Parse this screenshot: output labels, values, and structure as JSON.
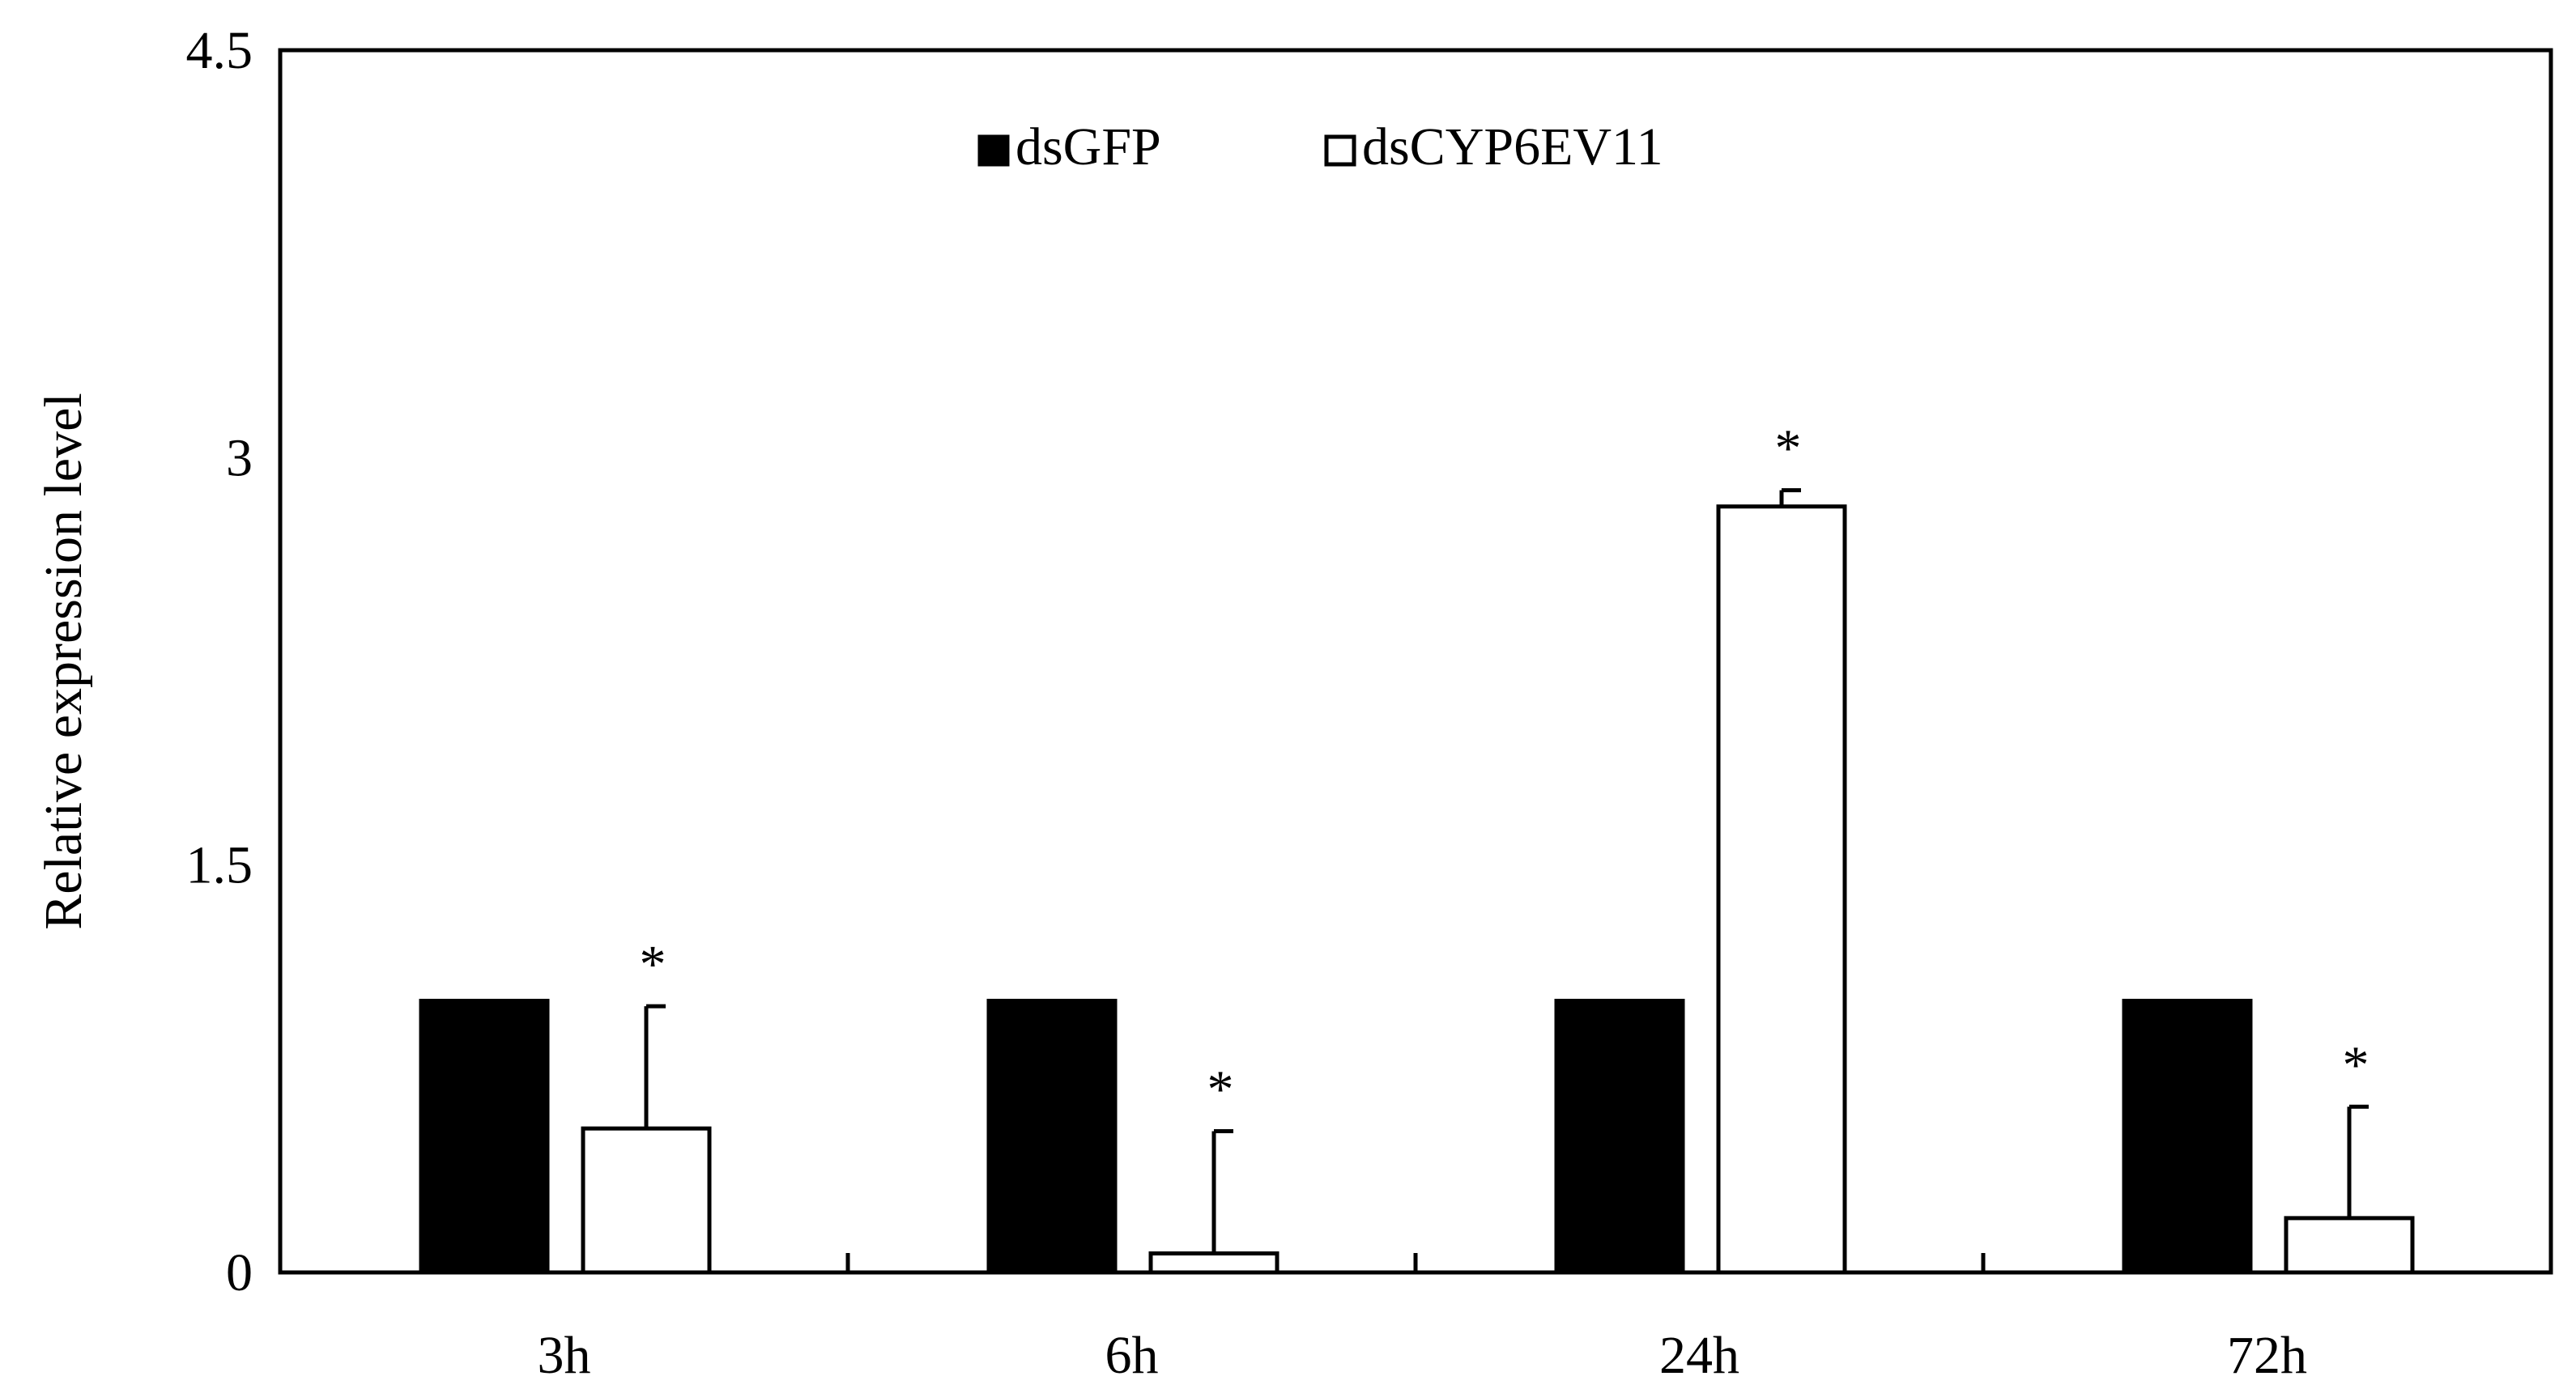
{
  "chart_data": {
    "type": "bar",
    "title": "",
    "xlabel": "",
    "ylabel": "Relative expression level",
    "ylim": [
      0,
      4.5
    ],
    "yticks": [
      "0",
      "1.5",
      "3",
      "4.5"
    ],
    "categories": [
      "3h",
      "6h",
      "24h",
      "72h"
    ],
    "series": [
      {
        "name": "dsGFP",
        "values": [
          1.0,
          1.0,
          1.0,
          1.0
        ],
        "fill": "#000000",
        "error": [
          0,
          0,
          0,
          0
        ]
      },
      {
        "name": "dsCYP6EV11",
        "values": [
          0.53,
          0.07,
          2.82,
          0.2
        ],
        "fill": "#ffffff",
        "error": [
          0.45,
          0.45,
          0.06,
          0.41
        ]
      }
    ],
    "significance": [
      "*",
      "*",
      "*",
      "*"
    ],
    "legend_position": "top-center",
    "grid": false
  }
}
